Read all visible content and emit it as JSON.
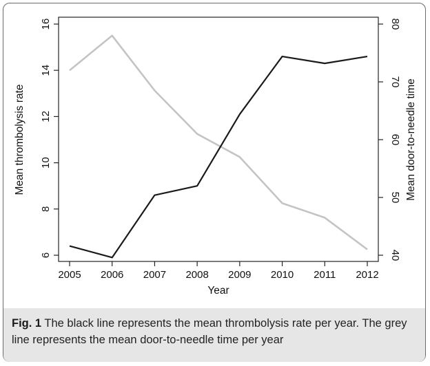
{
  "chart_data": {
    "type": "line",
    "title": "",
    "xlabel": "Year",
    "ylabel_left": "Mean thrombolysis rate",
    "ylabel_right": "Mean door-to-needle time",
    "x": [
      2005,
      2006,
      2007,
      2008,
      2009,
      2010,
      2011,
      2012
    ],
    "x_ticks": [
      "2005",
      "2006",
      "2007",
      "2008",
      "2009",
      "2010",
      "2011",
      "2012"
    ],
    "ylim_left": [
      6,
      16
    ],
    "y_ticks_left": [
      "6",
      "8",
      "10",
      "12",
      "14",
      "16"
    ],
    "ylim_right": [
      40,
      80
    ],
    "y_ticks_right": [
      "40",
      "50",
      "60",
      "70",
      "80"
    ],
    "grid": false,
    "series": [
      {
        "axis": "left",
        "color": "#1a1a1a",
        "values": [
          6.4,
          5.9,
          8.6,
          9.0,
          12.1,
          14.6,
          14.3,
          14.6
        ]
      },
      {
        "axis": "right",
        "color": "#c4c4c4",
        "values": [
          72,
          78,
          68.5,
          61,
          57,
          49,
          46.5,
          41
        ]
      }
    ]
  },
  "caption": {
    "label": "Fig. 1",
    "text": " The black line represents the mean thrombolysis rate per year. The grey line represents the mean door-to-needle time per year"
  }
}
